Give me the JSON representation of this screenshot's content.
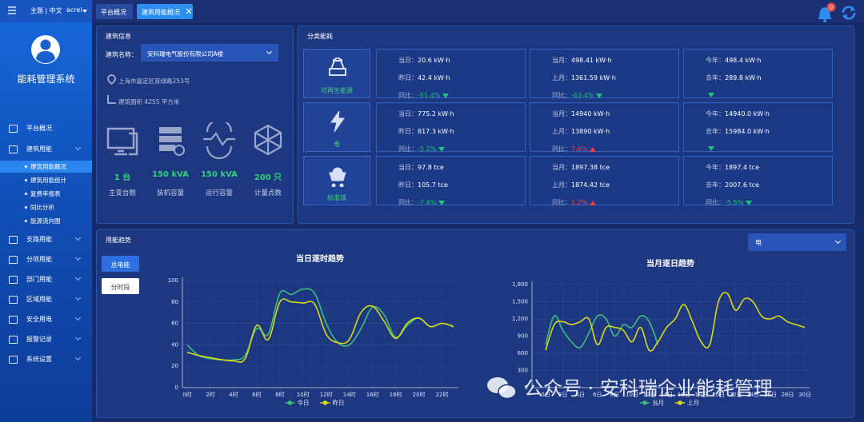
{
  "sidebar": {
    "top": "主题 | 中文",
    "user": "acrel",
    "system_name": "能耗管理系统",
    "menu": [
      {
        "name": "平台概况"
      },
      {
        "name": "建筑用能",
        "children": [
          "建筑用能概况",
          "建筑用能统计",
          "复费率报表",
          "同比分析",
          "能源流向图"
        ]
      },
      {
        "name": "支路用能"
      },
      {
        "name": "分项用能"
      },
      {
        "name": "部门用能"
      },
      {
        "name": "区域用能"
      },
      {
        "name": "安全用电"
      },
      {
        "name": "报警记录"
      },
      {
        "name": "系统设置"
      }
    ],
    "active": "建筑用能概况"
  },
  "header": {
    "tabs": [
      "平台概况",
      "建筑用能概况"
    ],
    "active_tab": "建筑用能概况",
    "badge": "0"
  },
  "building": {
    "title": "建筑信息",
    "name_label": "建筑名称：",
    "name": "安科瑞电气股份有限公司A楼",
    "address": "上海市嘉定区育绿路253号",
    "area": "建筑面积 4255 平方米",
    "stats": [
      {
        "value": "1 台",
        "label": "主变台数"
      },
      {
        "value": "150 kVA",
        "label": "装机容量"
      },
      {
        "value": "150 kVA",
        "label": "运行容量"
      },
      {
        "value": "200 只",
        "label": "计量点数"
      }
    ]
  },
  "category": {
    "title": "分类能耗",
    "rows": [
      {
        "name": "可再生能源",
        "cells": [
          [
            {
              "label": "当日：",
              "value": "20.6 kW·h"
            },
            {
              "label": "昨日：",
              "value": "42.4 kW·h"
            },
            {
              "label": "同比：",
              "value": "-51.4%",
              "trend": "down"
            }
          ],
          [
            {
              "label": "当月：",
              "value": "498.41 kW·h"
            },
            {
              "label": "上月：",
              "value": "1361.59 kW·h"
            },
            {
              "label": "同比：",
              "value": "-63.4%",
              "trend": "down"
            }
          ],
          [
            {
              "label": "今年：",
              "value": "498.4 kW·h"
            },
            {
              "label": "去年：",
              "value": "289.8 kW·h"
            },
            {
              "trend": "down"
            }
          ]
        ]
      },
      {
        "name": "电",
        "cells": [
          [
            {
              "label": "当日：",
              "value": "775.2 kW·h"
            },
            {
              "label": "昨日：",
              "value": "817.3 kW·h"
            },
            {
              "label": "同比：",
              "value": "-5.1%",
              "trend": "down"
            }
          ],
          [
            {
              "label": "当月：",
              "value": "14940 kW·h"
            },
            {
              "label": "上月：",
              "value": "13890 kW·h"
            },
            {
              "label": "同比：",
              "value": "7.6%",
              "trend": "up"
            }
          ],
          [
            {
              "label": "今年：",
              "value": "14940.0 kW·h"
            },
            {
              "label": "去年：",
              "value": "15984.0 kW·h"
            },
            {
              "trend": "down"
            }
          ]
        ]
      },
      {
        "name": "标准煤",
        "cells": [
          [
            {
              "label": "当日：",
              "value": "97.8 tce"
            },
            {
              "label": "昨日：",
              "value": "105.7 tce"
            },
            {
              "label": "同比：",
              "value": "-7.4%",
              "trend": "down"
            }
          ],
          [
            {
              "label": "当月：",
              "value": "1897.38 tce"
            },
            {
              "label": "上月：",
              "value": "1874.42 tce"
            },
            {
              "label": "同比：",
              "value": "1.2%",
              "trend": "up"
            }
          ],
          [
            {
              "label": "今年：",
              "value": "1897.4 tce"
            },
            {
              "label": "去年：",
              "value": "2007.6 tce"
            },
            {
              "label": "同比：",
              "value": "-5.5%",
              "trend": "down"
            }
          ]
        ]
      }
    ]
  },
  "trend": {
    "title": "用能趋势",
    "select": "电",
    "buttons": [
      "总电能",
      "分时段"
    ],
    "active_button": "总电能"
  },
  "watermark": "公众号 · 安科瑞企业能耗管理",
  "chart_data": [
    {
      "type": "line",
      "title": "当日逐时趋势",
      "categories": [
        "0时",
        null,
        "2时",
        null,
        "4时",
        null,
        "6时",
        null,
        "8时",
        null,
        "10时",
        null,
        "12时",
        null,
        "14时",
        null,
        "16时",
        null,
        "18时",
        null,
        "20时",
        null,
        "22时",
        null
      ],
      "series": [
        {
          "name": "今日",
          "color": "#3dbd7d",
          "values": [
            40,
            30,
            27,
            26,
            26,
            30,
            55,
            50,
            88,
            87,
            92,
            88,
            60,
            42,
            40,
            55,
            75,
            68,
            47,
            58,
            65,
            57,
            60,
            57
          ]
        },
        {
          "name": "昨日",
          "color": "#d9d91a",
          "values": [
            33,
            30,
            28,
            26,
            25,
            27,
            58,
            45,
            80,
            80,
            79,
            78,
            50,
            42,
            45,
            70,
            76,
            62,
            46,
            60,
            65,
            57,
            60,
            57
          ]
        }
      ],
      "ylim": [
        0,
        100
      ],
      "yticks": [
        0,
        20,
        40,
        60,
        80,
        100
      ],
      "grid": true
    },
    {
      "type": "line",
      "title": "当月逐日趋势",
      "categories": [
        "0日",
        null,
        "2日",
        null,
        "4日",
        null,
        "6日",
        null,
        "8日",
        null,
        "10日",
        null,
        "12日",
        null,
        "14日",
        null,
        "16日",
        null,
        "18日",
        null,
        "20日",
        null,
        "22日",
        null,
        "24日",
        null,
        "26日",
        null,
        "28日",
        null,
        "30日"
      ],
      "series": [
        {
          "name": "当月",
          "color": "#3dbd7d",
          "values": [
            750,
            1250,
            1000,
            800,
            700,
            950,
            1250,
            1200,
            900,
            1100,
            1050,
            1250,
            1150,
            750,
            null,
            null,
            null,
            null,
            null,
            null,
            null,
            null,
            null,
            null,
            null,
            null,
            null,
            null,
            null,
            null,
            null
          ]
        },
        {
          "name": "上月",
          "color": "#d9d91a",
          "values": [
            650,
            1100,
            1150,
            1100,
            1150,
            1200,
            750,
            1050,
            1050,
            1000,
            800,
            1050,
            650,
            800,
            1050,
            1200,
            1450,
            1150,
            800,
            750,
            1500,
            1650,
            1350,
            1550,
            1500,
            1250,
            1200,
            1250,
            1150,
            1100,
            1050
          ]
        }
      ],
      "ylim": [
        0,
        1800
      ],
      "yticks": [
        0,
        300,
        600,
        900,
        {
          "value": 1200,
          "label": "1,200"
        },
        {
          "value": 1500,
          "label": "1,500"
        },
        {
          "value": 1800,
          "label": "1,800"
        }
      ],
      "grid": true
    }
  ]
}
